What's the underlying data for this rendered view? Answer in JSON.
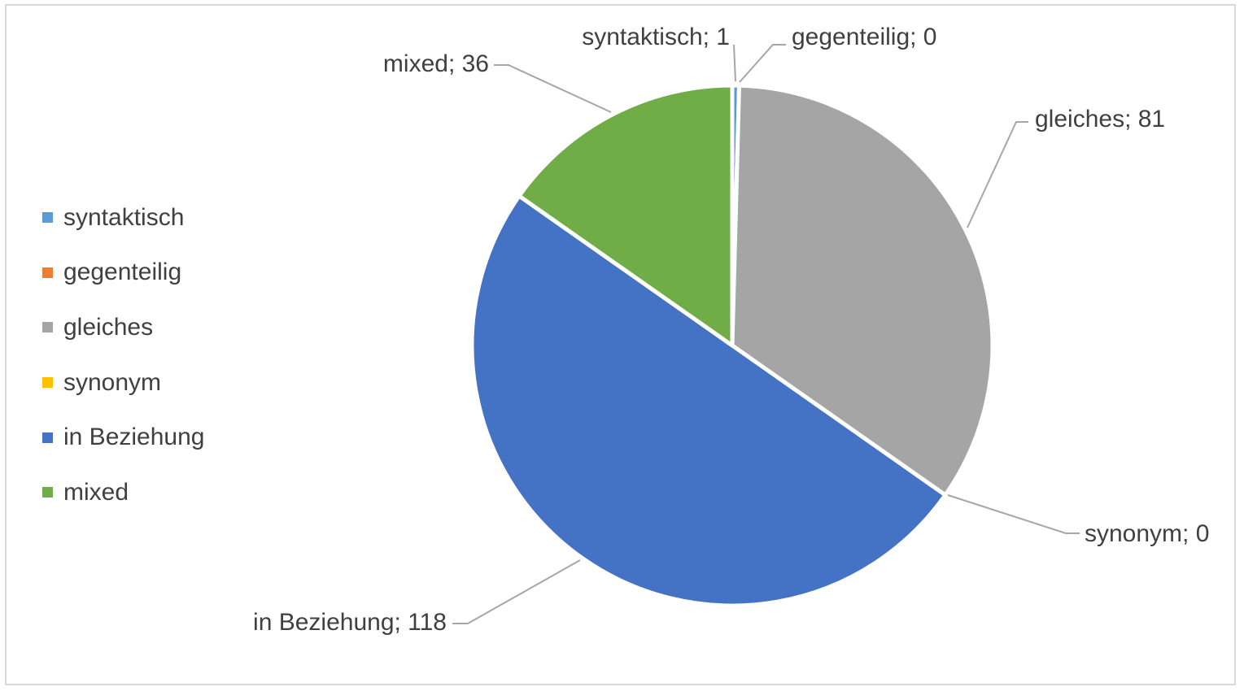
{
  "chart_data": {
    "type": "pie",
    "title": "",
    "legend_position": "left",
    "label_format": "{name}; {value}",
    "slices": [
      {
        "name": "syntaktisch",
        "value": 1,
        "color": "#5b9bd5"
      },
      {
        "name": "gegenteilig",
        "value": 0,
        "color": "#ed7d31"
      },
      {
        "name": "gleiches",
        "value": 81,
        "color": "#a5a5a5"
      },
      {
        "name": "synonym",
        "value": 0,
        "color": "#ffc000"
      },
      {
        "name": "in Beziehung",
        "value": 118,
        "color": "#4472c4"
      },
      {
        "name": "mixed",
        "value": 36,
        "color": "#70ad47"
      }
    ]
  }
}
